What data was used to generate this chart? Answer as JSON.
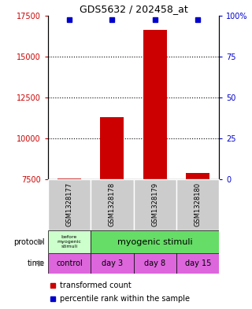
{
  "title": "GDS5632 / 202458_at",
  "samples": [
    "GSM1328177",
    "GSM1328178",
    "GSM1328179",
    "GSM1328180"
  ],
  "transformed_counts": [
    7560,
    11300,
    16600,
    7900
  ],
  "bar_color": "#CC0000",
  "dot_color": "#0000CC",
  "ylim": [
    7500,
    17500
  ],
  "yticks_left": [
    7500,
    10000,
    12500,
    15000,
    17500
  ],
  "yticks_right": [
    0,
    25,
    50,
    75,
    100
  ],
  "ytick_labels_left": [
    "7500",
    "10000",
    "12500",
    "15000",
    "17500"
  ],
  "ytick_labels_right": [
    "0",
    "25",
    "50",
    "75",
    "100%"
  ],
  "dotted_lines": [
    10000,
    12500,
    15000
  ],
  "protocol_labels": [
    "before\nmyogenic\nstimuli",
    "myogenic stimuli"
  ],
  "protocol_colors": [
    "#ccffcc",
    "#66dd66"
  ],
  "time_labels": [
    "control",
    "day 3",
    "day 8",
    "day 15"
  ],
  "time_color": "#dd66dd",
  "sample_bg_color": "#cccccc",
  "legend_red_label": "transformed count",
  "legend_blue_label": "percentile rank within the sample",
  "left_tick_color": "#CC0000",
  "right_tick_color": "#0000CC",
  "baseline": 7500,
  "left_label": "protocol",
  "left_label2": "time"
}
